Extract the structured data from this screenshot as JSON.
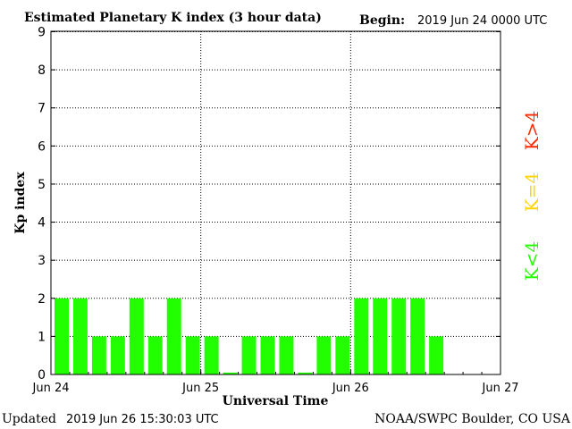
{
  "header": {
    "title": "Estimated Planetary K index (3 hour data)",
    "begin_label": "Begin:",
    "begin_value": "2019 Jun 24 0000 UTC"
  },
  "footer": {
    "updated_label": "Updated",
    "updated_value": "2019 Jun 26 15:30:03 UTC",
    "source": "NOAA/SWPC Boulder, CO USA"
  },
  "legend": [
    {
      "text": "K>4",
      "color": "#ff2a00"
    },
    {
      "text": "K=4",
      "color": "#ffd400"
    },
    {
      "text": "K<4",
      "color": "#22ff00"
    }
  ],
  "chart_data": {
    "type": "bar",
    "title": "Estimated Planetary K index (3 hour data)",
    "xlabel": "Universal Time",
    "ylabel": "Kp index",
    "ylim": [
      0,
      9
    ],
    "yticks": [
      "0",
      "1",
      "2",
      "3",
      "4",
      "5",
      "6",
      "7",
      "8",
      "9"
    ],
    "xticks": [
      "Jun 24",
      "Jun 25",
      "Jun 26",
      "Jun 27"
    ],
    "slots_total": 24,
    "grid": true,
    "bar_color": "#22ff00",
    "values": [
      2,
      2,
      1,
      1,
      2,
      1,
      2,
      1,
      1,
      0.05,
      1,
      1,
      1,
      0.05,
      1,
      1,
      2,
      2,
      2,
      2,
      1
    ]
  }
}
